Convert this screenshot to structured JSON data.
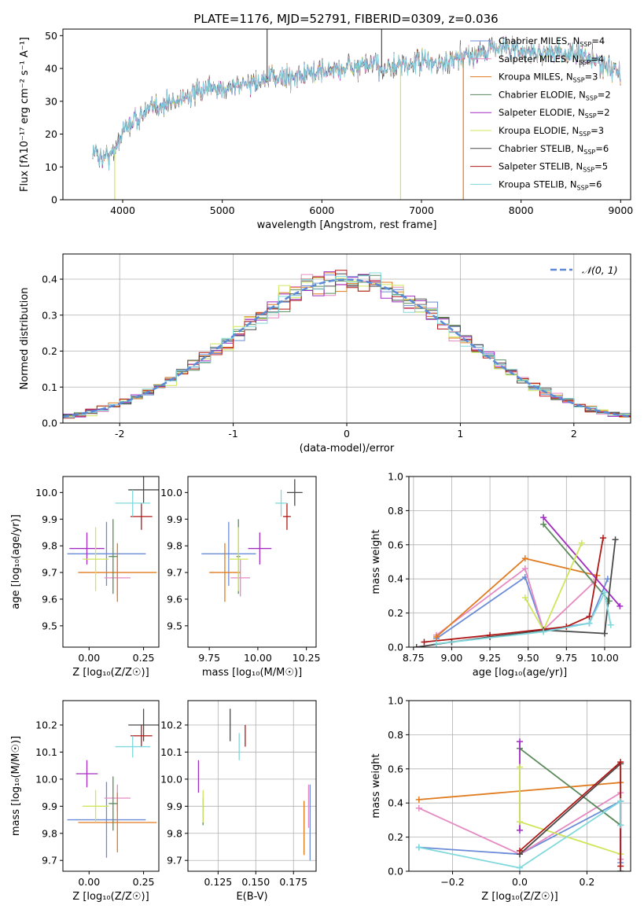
{
  "figure_title": "PLATE=1176, MJD=52791, FIBERID=0309, z=0.036",
  "colors": {
    "Chabrier MILES": "#6a8cd8",
    "Salpeter MILES": "#e58ac2",
    "Kroupa MILES": "#e07b1f",
    "Chabrier ELODIE": "#5a8a5a",
    "Salpeter ELODIE": "#a12cbf",
    "Kroupa ELODIE": "#cfe65a",
    "Chabrier STELIB": "#4a4a4a",
    "Salpeter STELIB": "#b01818",
    "Kroupa STELIB": "#7fd8dc",
    "normal": "#5b8ad6"
  },
  "chart_data": [
    {
      "id": "spectrum",
      "type": "line",
      "title": "PLATE=1176, MJD=52791, FIBERID=0309, z=0.036",
      "xlabel": "wavelength [Angstrom, rest frame]",
      "ylabel": "Flux [fλ10⁻¹⁷ erg cm⁻² s⁻¹ A⁻¹]",
      "xlim": [
        3400,
        9100
      ],
      "ylim": [
        0,
        52
      ],
      "xticks": [
        4000,
        5000,
        6000,
        7000,
        8000,
        9000
      ],
      "yticks": [
        0,
        10,
        20,
        30,
        40,
        50
      ],
      "legend_position": "top-right",
      "continuum_x": [
        3700,
        3800,
        3900,
        4000,
        4100,
        4300,
        4500,
        4800,
        5000,
        5200,
        5500,
        5800,
        6000,
        6200,
        6500,
        6700,
        7000,
        7200,
        7400,
        7600,
        7800,
        8000,
        8300,
        8600,
        8800,
        9000
      ],
      "continuum_y": [
        15,
        13,
        14,
        21,
        24,
        28,
        30,
        33,
        34,
        35,
        37,
        38,
        39,
        40,
        41,
        40,
        42,
        41,
        43,
        45,
        47,
        45,
        45,
        44,
        42,
        38
      ],
      "spikes": [
        {
          "x": 3920,
          "y": 0,
          "series": "Kroupa ELODIE"
        },
        {
          "x": 5450,
          "y": 52,
          "series": "Chabrier STELIB"
        },
        {
          "x": 6600,
          "y": 52,
          "series": "Chabrier STELIB"
        },
        {
          "x": 6790,
          "y": 0,
          "series": "Kroupa ELODIE"
        },
        {
          "x": 7420,
          "y": 0,
          "series": "Kroupa MILES"
        }
      ],
      "series": [
        {
          "name": "Chabrier MILES",
          "legend": "Chabrier MILES, N",
          "nssp": "=4"
        },
        {
          "name": "Salpeter MILES",
          "legend": "Salpeter MILES, N",
          "nssp": "=4"
        },
        {
          "name": "Kroupa MILES",
          "legend": "Kroupa MILES, N",
          "nssp": "=3"
        },
        {
          "name": "Chabrier ELODIE",
          "legend": "Chabrier ELODIE, N",
          "nssp": "=2"
        },
        {
          "name": "Salpeter ELODIE",
          "legend": "Salpeter ELODIE, N",
          "nssp": "=2"
        },
        {
          "name": "Kroupa ELODIE",
          "legend": "Kroupa ELODIE, N",
          "nssp": "=3"
        },
        {
          "name": "Chabrier STELIB",
          "legend": "Chabrier STELIB, N",
          "nssp": "=6"
        },
        {
          "name": "Salpeter STELIB",
          "legend": "Salpeter STELIB, N",
          "nssp": "=5"
        },
        {
          "name": "Kroupa STELIB",
          "legend": "Kroupa STELIB, N",
          "nssp": "=6"
        }
      ]
    },
    {
      "id": "residuals",
      "type": "line",
      "xlabel": "(data-model)/error",
      "ylabel": "Normed distribution",
      "xlim": [
        -2.5,
        2.5
      ],
      "ylim": [
        0,
        0.47
      ],
      "xticks": [
        -2,
        -1,
        0,
        1,
        2
      ],
      "yticks": [
        0.0,
        0.1,
        0.2,
        0.3,
        0.4
      ],
      "grid": true,
      "bin_width": 0.1,
      "legend": "𝒩(0, 1)",
      "legend_position": "top-right"
    },
    {
      "id": "age_vs_Z",
      "type": "scatter",
      "xlabel": "Z [log₁₀(Z/Z☉)]",
      "ylabel": "age  [log₁₀(age/yr)]",
      "xlim": [
        -0.12,
        0.32
      ],
      "ylim": [
        9.42,
        10.06
      ],
      "xticks": [
        0.0,
        0.25
      ],
      "xtick_labels": [
        "0.00",
        "0.25"
      ],
      "yticks": [
        9.5,
        9.6,
        9.7,
        9.8,
        9.9,
        10.0
      ],
      "points": [
        {
          "series": "Chabrier MILES",
          "x": 0.08,
          "y": 9.77,
          "xerr": 0.18,
          "yerr": 0.12
        },
        {
          "series": "Salpeter MILES",
          "x": 0.13,
          "y": 9.68,
          "xerr": 0.06,
          "yerr": 0.07
        },
        {
          "series": "Kroupa MILES",
          "x": 0.13,
          "y": 9.7,
          "xerr": 0.18,
          "yerr": 0.11
        },
        {
          "series": "Chabrier ELODIE",
          "x": 0.11,
          "y": 9.76,
          "xerr": 0.02,
          "yerr": 0.14
        },
        {
          "series": "Salpeter ELODIE",
          "x": -0.01,
          "y": 9.79,
          "xerr": 0.08,
          "yerr": 0.06
        },
        {
          "series": "Kroupa ELODIE",
          "x": 0.03,
          "y": 9.75,
          "xerr": 0.06,
          "yerr": 0.12
        },
        {
          "series": "Chabrier STELIB",
          "x": 0.25,
          "y": 10.01,
          "xerr": 0.07,
          "yerr": 0.05
        },
        {
          "series": "Salpeter STELIB",
          "x": 0.24,
          "y": 9.91,
          "xerr": 0.05,
          "yerr": 0.05
        },
        {
          "series": "Kroupa STELIB",
          "x": 0.2,
          "y": 9.96,
          "xerr": 0.08,
          "yerr": 0.05
        }
      ]
    },
    {
      "id": "age_vs_mass",
      "type": "scatter",
      "xlabel": "mass [log₁₀(M/M☉)]",
      "xlim": [
        9.64,
        10.3
      ],
      "ylim": [
        9.42,
        10.06
      ],
      "xticks": [
        9.75,
        10.0,
        10.25
      ],
      "xtick_labels": [
        "9.75",
        "10.00",
        "10.25"
      ],
      "yticks": [
        9.5,
        9.6,
        9.7,
        9.8,
        9.9,
        10.0
      ],
      "points": [
        {
          "series": "Chabrier MILES",
          "x": 9.85,
          "y": 9.77,
          "xerr": 0.14,
          "yerr": 0.12
        },
        {
          "series": "Salpeter MILES",
          "x": 9.91,
          "y": 9.68,
          "xerr": 0.05,
          "yerr": 0.07
        },
        {
          "series": "Kroupa MILES",
          "x": 9.83,
          "y": 9.7,
          "xerr": 0.08,
          "yerr": 0.11
        },
        {
          "series": "Chabrier ELODIE",
          "x": 9.9,
          "y": 9.76,
          "xerr": 0.01,
          "yerr": 0.14
        },
        {
          "series": "Salpeter ELODIE",
          "x": 10.01,
          "y": 9.79,
          "xerr": 0.06,
          "yerr": 0.06
        },
        {
          "series": "Kroupa ELODIE",
          "x": 9.9,
          "y": 9.75,
          "xerr": 0.05,
          "yerr": 0.12
        },
        {
          "series": "Chabrier STELIB",
          "x": 10.19,
          "y": 10.0,
          "xerr": 0.04,
          "yerr": 0.05
        },
        {
          "series": "Salpeter STELIB",
          "x": 10.15,
          "y": 9.91,
          "xerr": 0.02,
          "yerr": 0.05
        },
        {
          "series": "Kroupa STELIB",
          "x": 10.12,
          "y": 9.96,
          "xerr": 0.03,
          "yerr": 0.05
        }
      ]
    },
    {
      "id": "weight_vs_age",
      "type": "line",
      "xlabel": "age  [log₁₀(age/yr)]",
      "ylabel": "mass weight",
      "xlim": [
        8.72,
        10.17
      ],
      "ylim": [
        0,
        1
      ],
      "xticks": [
        8.75,
        9.0,
        9.25,
        9.5,
        9.75,
        10.0
      ],
      "xtick_labels": [
        "8.75",
        "9.00",
        "9.25",
        "9.50",
        "9.75",
        "10.00"
      ],
      "yticks": [
        0.0,
        0.2,
        0.4,
        0.6,
        0.8,
        1.0
      ],
      "grid": true,
      "series": [
        {
          "name": "Chabrier MILES",
          "x": [
            8.9,
            9.48,
            9.6,
            9.9,
            10.02
          ],
          "y": [
            0.05,
            0.41,
            0.1,
            0.14,
            0.4
          ]
        },
        {
          "name": "Salpeter MILES",
          "x": [
            8.9,
            9.48,
            9.6,
            9.93
          ],
          "y": [
            0.07,
            0.46,
            0.1,
            0.38
          ]
        },
        {
          "name": "Kroupa MILES",
          "x": [
            8.9,
            9.48,
            9.95
          ],
          "y": [
            0.06,
            0.52,
            0.42
          ]
        },
        {
          "name": "Chabrier ELODIE",
          "x": [
            9.6,
            10.03
          ],
          "y": [
            0.72,
            0.27
          ]
        },
        {
          "name": "Salpeter ELODIE",
          "x": [
            9.6,
            10.1
          ],
          "y": [
            0.76,
            0.24
          ]
        },
        {
          "name": "Kroupa ELODIE",
          "x": [
            9.48,
            9.6,
            9.85
          ],
          "y": [
            0.29,
            0.1,
            0.61
          ]
        },
        {
          "name": "Chabrier STELIB",
          "x": [
            8.77,
            9.0,
            9.25,
            9.6,
            10.0,
            10.07
          ],
          "y": [
            0.0,
            0.03,
            0.06,
            0.1,
            0.08,
            0.63
          ]
        },
        {
          "name": "Salpeter STELIB",
          "x": [
            8.82,
            9.25,
            9.75,
            9.9,
            9.99
          ],
          "y": [
            0.03,
            0.07,
            0.12,
            0.18,
            0.64
          ]
        },
        {
          "name": "Kroupa STELIB",
          "x": [
            8.9,
            9.6,
            9.9,
            10.0,
            10.04
          ],
          "y": [
            0.02,
            0.09,
            0.14,
            0.32,
            0.13
          ]
        }
      ]
    },
    {
      "id": "mass_vs_Z",
      "type": "scatter",
      "xlabel": "Z [log₁₀(Z/Z☉)]",
      "ylabel": "mass [log₁₀(M/M☉)]",
      "xlim": [
        -0.12,
        0.32
      ],
      "ylim": [
        9.66,
        10.29
      ],
      "xticks": [
        0.0,
        0.25
      ],
      "xtick_labels": [
        "0.00",
        "0.25"
      ],
      "yticks": [
        9.7,
        9.8,
        9.9,
        10.0,
        10.1,
        10.2
      ],
      "points": [
        {
          "series": "Chabrier MILES",
          "x": 0.08,
          "y": 9.85,
          "xerr": 0.18,
          "yerr": 0.14
        },
        {
          "series": "Salpeter MILES",
          "x": 0.13,
          "y": 9.93,
          "xerr": 0.06,
          "yerr": 0.05
        },
        {
          "series": "Kroupa MILES",
          "x": 0.13,
          "y": 9.84,
          "xerr": 0.18,
          "yerr": 0.11
        },
        {
          "series": "Chabrier ELODIE",
          "x": 0.11,
          "y": 9.91,
          "xerr": 0.02,
          "yerr": 0.1
        },
        {
          "series": "Salpeter ELODIE",
          "x": -0.01,
          "y": 10.02,
          "xerr": 0.05,
          "yerr": 0.05
        },
        {
          "series": "Kroupa ELODIE",
          "x": 0.03,
          "y": 9.9,
          "xerr": 0.06,
          "yerr": 0.06
        },
        {
          "series": "Chabrier STELIB",
          "x": 0.25,
          "y": 10.2,
          "xerr": 0.07,
          "yerr": 0.06
        },
        {
          "series": "Salpeter STELIB",
          "x": 0.24,
          "y": 10.16,
          "xerr": 0.05,
          "yerr": 0.04
        },
        {
          "series": "Kroupa STELIB",
          "x": 0.2,
          "y": 10.12,
          "xerr": 0.08,
          "yerr": 0.04
        }
      ]
    },
    {
      "id": "mass_vs_ebv",
      "type": "scatter",
      "xlabel": "E(B-V)",
      "xlim": [
        0.105,
        0.19
      ],
      "ylim": [
        9.66,
        10.29
      ],
      "xticks": [
        0.125,
        0.15,
        0.175
      ],
      "xtick_labels": [
        "0.125",
        "0.150",
        "0.175"
      ],
      "yticks": [
        9.7,
        9.8,
        9.9,
        10.0,
        10.1,
        10.2
      ],
      "grid": true,
      "points": [
        {
          "series": "Chabrier MILES",
          "x": 0.186,
          "y": 9.84,
          "yerr": 0.14
        },
        {
          "series": "Salpeter MILES",
          "x": 0.185,
          "y": 9.9,
          "yerr": 0.08
        },
        {
          "series": "Kroupa MILES",
          "x": 0.182,
          "y": 9.82,
          "yerr": 0.1
        },
        {
          "series": "Chabrier ELODIE",
          "x": 0.115,
          "y": 9.88,
          "yerr": 0.05
        },
        {
          "series": "Salpeter ELODIE",
          "x": 0.112,
          "y": 10.01,
          "yerr": 0.06
        },
        {
          "series": "Kroupa ELODIE",
          "x": 0.115,
          "y": 9.9,
          "yerr": 0.06
        },
        {
          "series": "Chabrier STELIB",
          "x": 0.133,
          "y": 10.2,
          "yerr": 0.06
        },
        {
          "series": "Salpeter STELIB",
          "x": 0.143,
          "y": 10.16,
          "yerr": 0.04
        },
        {
          "series": "Kroupa STELIB",
          "x": 0.139,
          "y": 10.12,
          "yerr": 0.05
        }
      ]
    },
    {
      "id": "weight_vs_Z",
      "type": "line",
      "xlabel": "Z [log₁₀(Z/Z☉)]",
      "ylabel": "mass weight",
      "xlim": [
        -0.33,
        0.33
      ],
      "ylim": [
        0,
        1
      ],
      "xticks": [
        -0.2,
        0.0,
        0.2
      ],
      "xtick_labels": [
        "−0.2",
        "0.0",
        "0.2"
      ],
      "yticks": [
        0.0,
        0.2,
        0.4,
        0.6,
        0.8,
        1.0
      ],
      "grid": true,
      "series": [
        {
          "name": "Chabrier MILES",
          "x": [
            -0.3,
            0.0,
            0.3,
            0.3
          ],
          "y": [
            0.14,
            0.1,
            0.41,
            0.05
          ]
        },
        {
          "name": "Salpeter MILES",
          "x": [
            -0.3,
            0.0,
            0.3,
            0.3
          ],
          "y": [
            0.37,
            0.1,
            0.46,
            0.07
          ]
        },
        {
          "name": "Kroupa MILES",
          "x": [
            -0.3,
            0.3
          ],
          "y": [
            0.42,
            0.52
          ]
        },
        {
          "name": "Chabrier ELODIE",
          "x": [
            0.0,
            0.3
          ],
          "y": [
            0.72,
            0.27
          ]
        },
        {
          "name": "Salpeter ELODIE",
          "x": [
            0.0,
            0.0
          ],
          "y": [
            0.76,
            0.24
          ]
        },
        {
          "name": "Kroupa ELODIE",
          "x": [
            0.0,
            0.0,
            0.3
          ],
          "y": [
            0.61,
            0.29,
            0.1
          ]
        },
        {
          "name": "Chabrier STELIB",
          "x": [
            0.0,
            0.3,
            0.3
          ],
          "y": [
            0.1,
            0.63,
            0.0
          ]
        },
        {
          "name": "Salpeter STELIB",
          "x": [
            0.0,
            0.3,
            0.3
          ],
          "y": [
            0.12,
            0.64,
            0.03
          ]
        },
        {
          "name": "Kroupa STELIB",
          "x": [
            -0.3,
            0.0,
            0.3,
            0.3
          ],
          "y": [
            0.14,
            0.02,
            0.41,
            0.27
          ]
        }
      ]
    }
  ]
}
